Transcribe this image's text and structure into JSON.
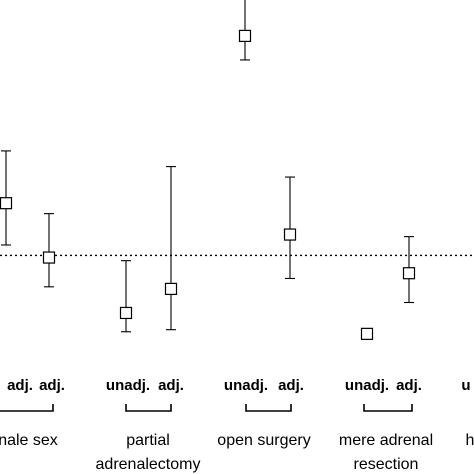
{
  "chart_data": {
    "type": "scatter",
    "title": "",
    "xlabel": "",
    "ylabel": "",
    "reference_line": 1.0,
    "ylim": [
      0.0,
      3.3
    ],
    "points": [
      {
        "group": "male sex",
        "label": "adj.",
        "value": 1.5,
        "lower": 1.1,
        "upper": 2.0
      },
      {
        "group": "male sex",
        "label": "adj.",
        "value": 0.98,
        "lower": 0.7,
        "upper": 1.4
      },
      {
        "group": "partial adrenalectomy",
        "label": "unadj.",
        "value": 0.45,
        "lower": 0.27,
        "upper": 0.95
      },
      {
        "group": "partial adrenalectomy",
        "label": "adj.",
        "value": 0.68,
        "lower": 0.29,
        "upper": 1.85
      },
      {
        "group": "open surgery",
        "label": "unadj.",
        "value": 3.1,
        "lower": 2.87,
        "upper": 3.45
      },
      {
        "group": "open surgery",
        "label": "adj.",
        "value": 1.2,
        "lower": 0.78,
        "upper": 1.75
      },
      {
        "group": "mere adrenal resection",
        "label": "unadj.",
        "value": 0.25,
        "lower": 0.22,
        "upper": 0.28
      },
      {
        "group": "mere adrenal resection",
        "label": "adj.",
        "value": 0.83,
        "lower": 0.55,
        "upper": 1.18
      }
    ],
    "tick_labels": [
      {
        "text": "adj."
      },
      {
        "text": "adj."
      },
      {
        "text": "unadj."
      },
      {
        "text": "adj."
      },
      {
        "text": "unadj."
      },
      {
        "text": "adj."
      },
      {
        "text": "unadj."
      },
      {
        "text": "adj."
      },
      {
        "text": "u"
      }
    ],
    "group_labels": [
      {
        "lines": [
          "nale sex"
        ]
      },
      {
        "lines": [
          "partial",
          "adrenalectomy"
        ]
      },
      {
        "lines": [
          "open surgery"
        ]
      },
      {
        "lines": [
          "mere adrenal",
          "resection"
        ]
      },
      {
        "lines": [
          "h"
        ]
      }
    ]
  }
}
